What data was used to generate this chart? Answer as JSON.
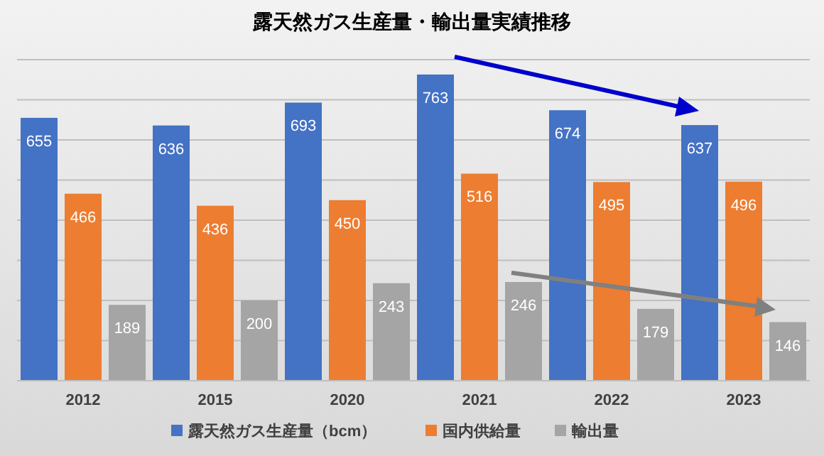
{
  "chart_data": {
    "type": "bar",
    "title": "露天然ガス生産量・輸出量実績推移",
    "categories": [
      "2012",
      "2015",
      "2020",
      "2021",
      "2022",
      "2023"
    ],
    "series": [
      {
        "name": "露天然ガス生産量（bcm）",
        "color": "#4472c4",
        "values": [
          655,
          636,
          693,
          763,
          674,
          637
        ]
      },
      {
        "name": "国内供給量",
        "color": "#ed7d31",
        "values": [
          466,
          436,
          450,
          516,
          495,
          496
        ]
      },
      {
        "name": "輸出量",
        "color": "#a5a5a5",
        "values": [
          189,
          200,
          243,
          246,
          179,
          146
        ]
      }
    ],
    "data_labels": true,
    "ylim": [
      0,
      800
    ],
    "yticks": [
      {
        "value": 0,
        "label": null
      },
      {
        "value": 100,
        "label": null
      },
      {
        "value": 200,
        "label": null
      },
      {
        "value": 300,
        "label": null
      },
      {
        "value": 400,
        "label": null
      },
      {
        "value": 500,
        "label": null
      },
      {
        "value": 600,
        "label": null
      },
      {
        "value": 700,
        "label": null
      },
      {
        "value": 800,
        "label": null
      }
    ],
    "grid": "y",
    "legend": "bottom"
  }
}
